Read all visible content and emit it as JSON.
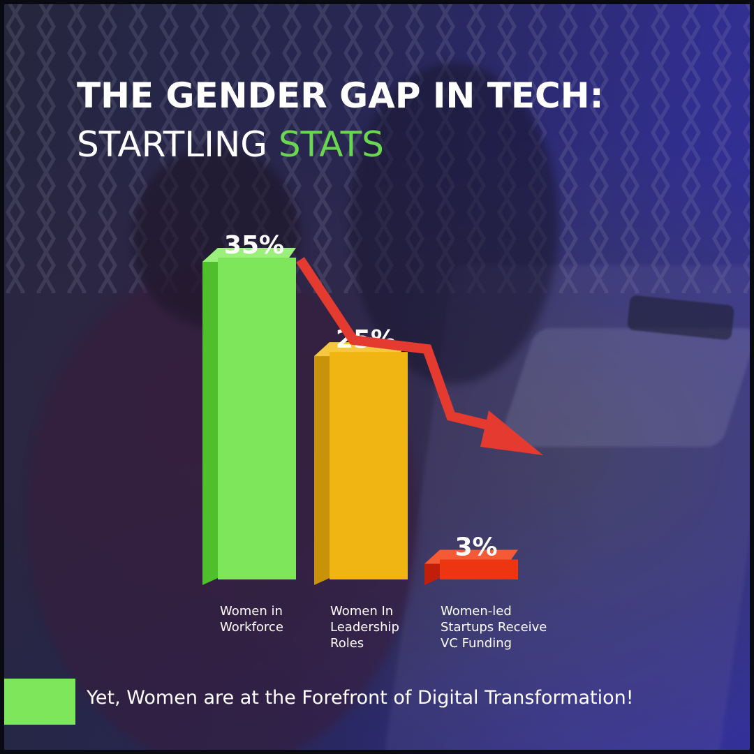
{
  "title": {
    "line1": "THE GENDER GAP IN TECH:",
    "line2_prefix": "STARTLING ",
    "line2_accent": "STATS"
  },
  "colors": {
    "accent": "#69d84f",
    "bar_green": "#7ee65b",
    "bar_yellow": "#f0b513",
    "bar_red": "#ee3512",
    "arrow": "#e53a30",
    "footer_swatch": "#7ee65b"
  },
  "chart_data": {
    "type": "bar",
    "categories": [
      "Women in Workforce",
      "Women In Leadership Roles",
      "Women-led Startups Receive VC Funding"
    ],
    "category_lines": [
      [
        "Women in",
        "Workforce"
      ],
      [
        "Women In",
        "Leadership",
        "Roles"
      ],
      [
        "Women-led",
        "Startups Receive",
        "VC Funding"
      ]
    ],
    "values": [
      35,
      25,
      3
    ],
    "data_labels": [
      "35%",
      "25%",
      "3%"
    ],
    "ylim": [
      0,
      35
    ],
    "grid": false,
    "legend": "none",
    "trend_arrow": "downward"
  },
  "footer": {
    "text": "Yet, Women are at the Forefront of Digital Transformation!"
  }
}
